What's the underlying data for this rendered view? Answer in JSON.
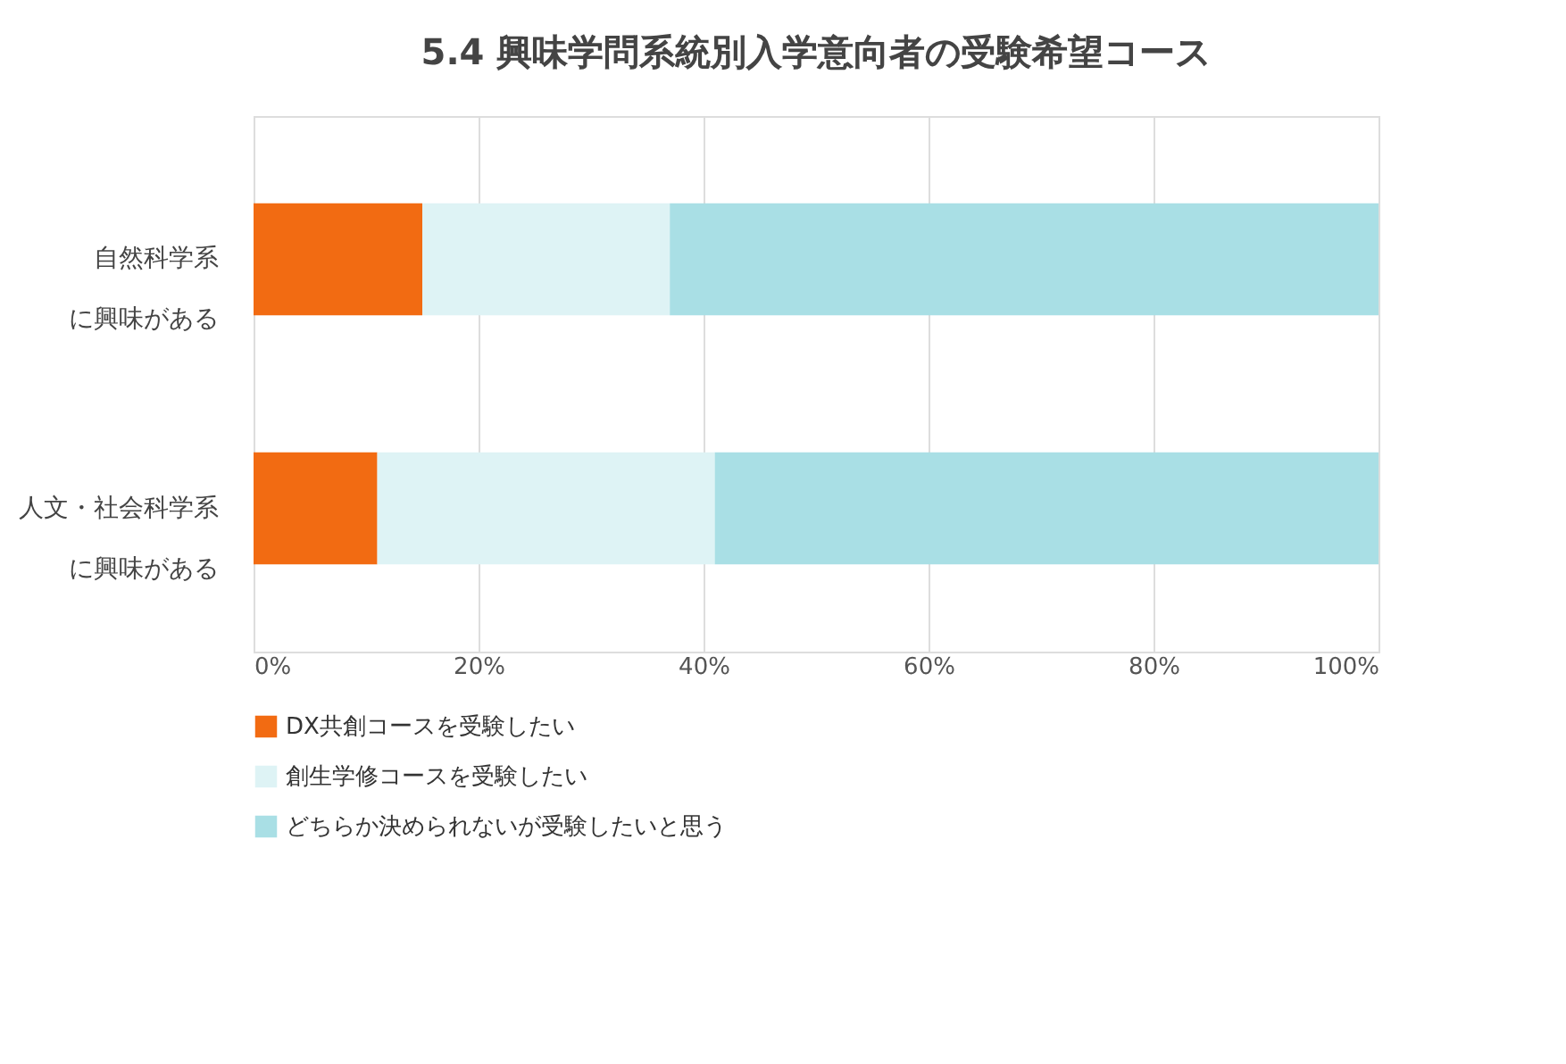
{
  "chart_data": {
    "type": "bar",
    "orientation": "horizontal",
    "stacked": true,
    "title": "5.4 興味学問系統別入学意向者の受験希望コース",
    "categories": [
      "自然科学系に興味がある",
      "人文・社会科学系に興味がある"
    ],
    "series": [
      {
        "name": "DX共創コースを受験したい",
        "color": "#f26b12",
        "values": [
          15,
          11
        ]
      },
      {
        "name": "創生学修コースを受験したい",
        "color": "#def3f5",
        "values": [
          22,
          30
        ]
      },
      {
        "name": "どちらか決められないが受験したいと思う",
        "color": "#a9dfe5",
        "values": [
          63,
          59
        ]
      }
    ],
    "xlim": [
      0,
      100
    ],
    "xticks": [
      {
        "value": 0,
        "label": "0%"
      },
      {
        "value": 20,
        "label": "20%"
      },
      {
        "value": 40,
        "label": "40%"
      },
      {
        "value": 60,
        "label": "60%"
      },
      {
        "value": 80,
        "label": "80%"
      },
      {
        "value": 100,
        "label": "100%"
      }
    ],
    "grid": "x",
    "legend": "bottom"
  }
}
